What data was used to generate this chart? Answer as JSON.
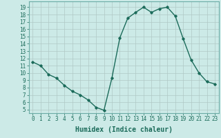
{
  "xlabel": "Humidex (Indice chaleur)",
  "x": [
    0,
    1,
    2,
    3,
    4,
    5,
    6,
    7,
    8,
    9,
    10,
    11,
    12,
    13,
    14,
    15,
    16,
    17,
    18,
    19,
    20,
    21,
    22,
    23
  ],
  "y": [
    11.5,
    11.0,
    9.8,
    9.3,
    8.3,
    7.5,
    7.0,
    6.3,
    5.3,
    4.9,
    9.3,
    14.8,
    17.5,
    18.3,
    19.0,
    18.3,
    18.8,
    19.0,
    17.8,
    14.7,
    11.8,
    10.0,
    8.8,
    8.5
  ],
  "line_color": "#1b6b5a",
  "marker": "D",
  "marker_size": 1.8,
  "bg_color": "#cceae7",
  "grid_color": "#b0c8c5",
  "ylim": [
    4.5,
    19.8
  ],
  "xlim": [
    -0.5,
    23.5
  ],
  "yticks": [
    5,
    6,
    7,
    8,
    9,
    10,
    11,
    12,
    13,
    14,
    15,
    16,
    17,
    18,
    19
  ],
  "xticks": [
    0,
    1,
    2,
    3,
    4,
    5,
    6,
    7,
    8,
    9,
    10,
    11,
    12,
    13,
    14,
    15,
    16,
    17,
    18,
    19,
    20,
    21,
    22,
    23
  ],
  "tick_fontsize": 5.5,
  "label_fontsize": 7,
  "linewidth": 1.0
}
